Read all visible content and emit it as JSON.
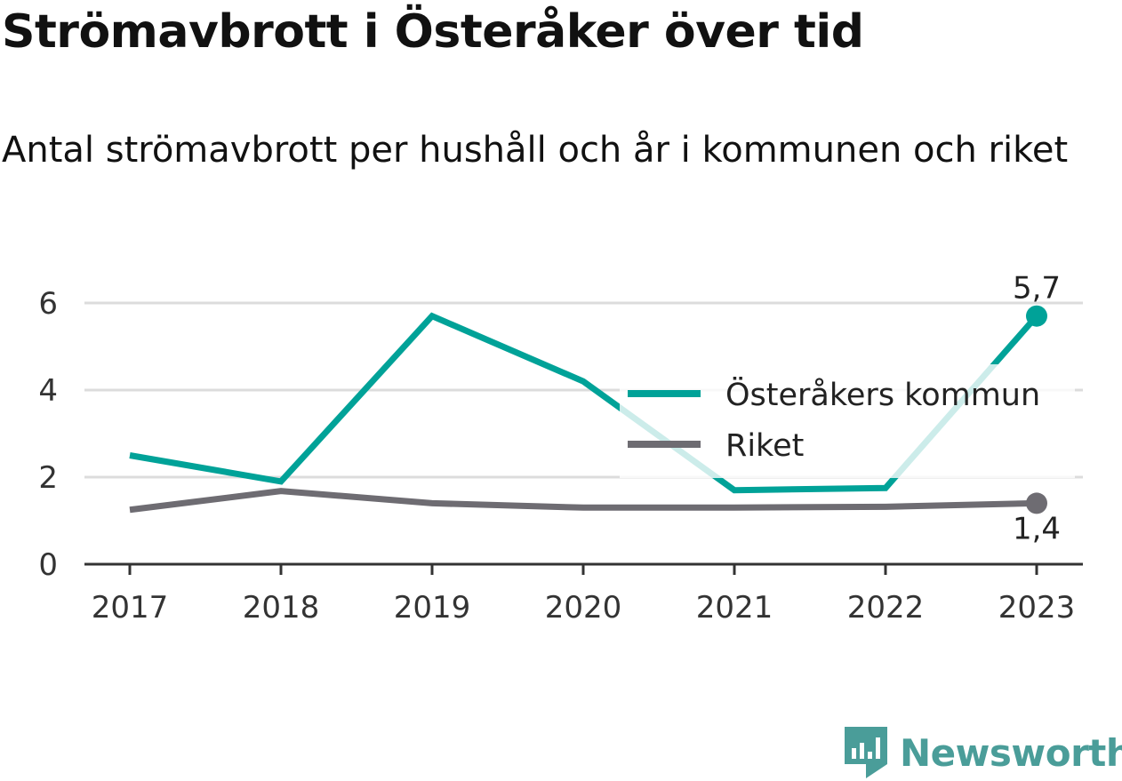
{
  "title": "Strömavbrott i Österåker över tid",
  "subtitle": "Antal strömavbrott per hushåll och år i kommunen och riket",
  "brand": {
    "name": "Newsworthy",
    "icon": "newsworthy-logo-icon",
    "color": "#4a9d99"
  },
  "chart_data": {
    "type": "line",
    "categories": [
      "2017",
      "2018",
      "2019",
      "2020",
      "2021",
      "2022",
      "2023"
    ],
    "ylim": [
      0,
      6
    ],
    "yticks": [
      0,
      2,
      4,
      6
    ],
    "grid": true,
    "legend_position": "right, middle",
    "series": [
      {
        "name": "Österåkers kommun",
        "color": "#00a298",
        "values": [
          2.5,
          1.9,
          5.7,
          4.2,
          1.7,
          1.75,
          5.7
        ],
        "end_label": "5,7"
      },
      {
        "name": "Riket",
        "color": "#6e6c72",
        "values": [
          1.25,
          1.68,
          1.4,
          1.3,
          1.3,
          1.32,
          1.4
        ],
        "end_label": "1,4"
      }
    ]
  }
}
